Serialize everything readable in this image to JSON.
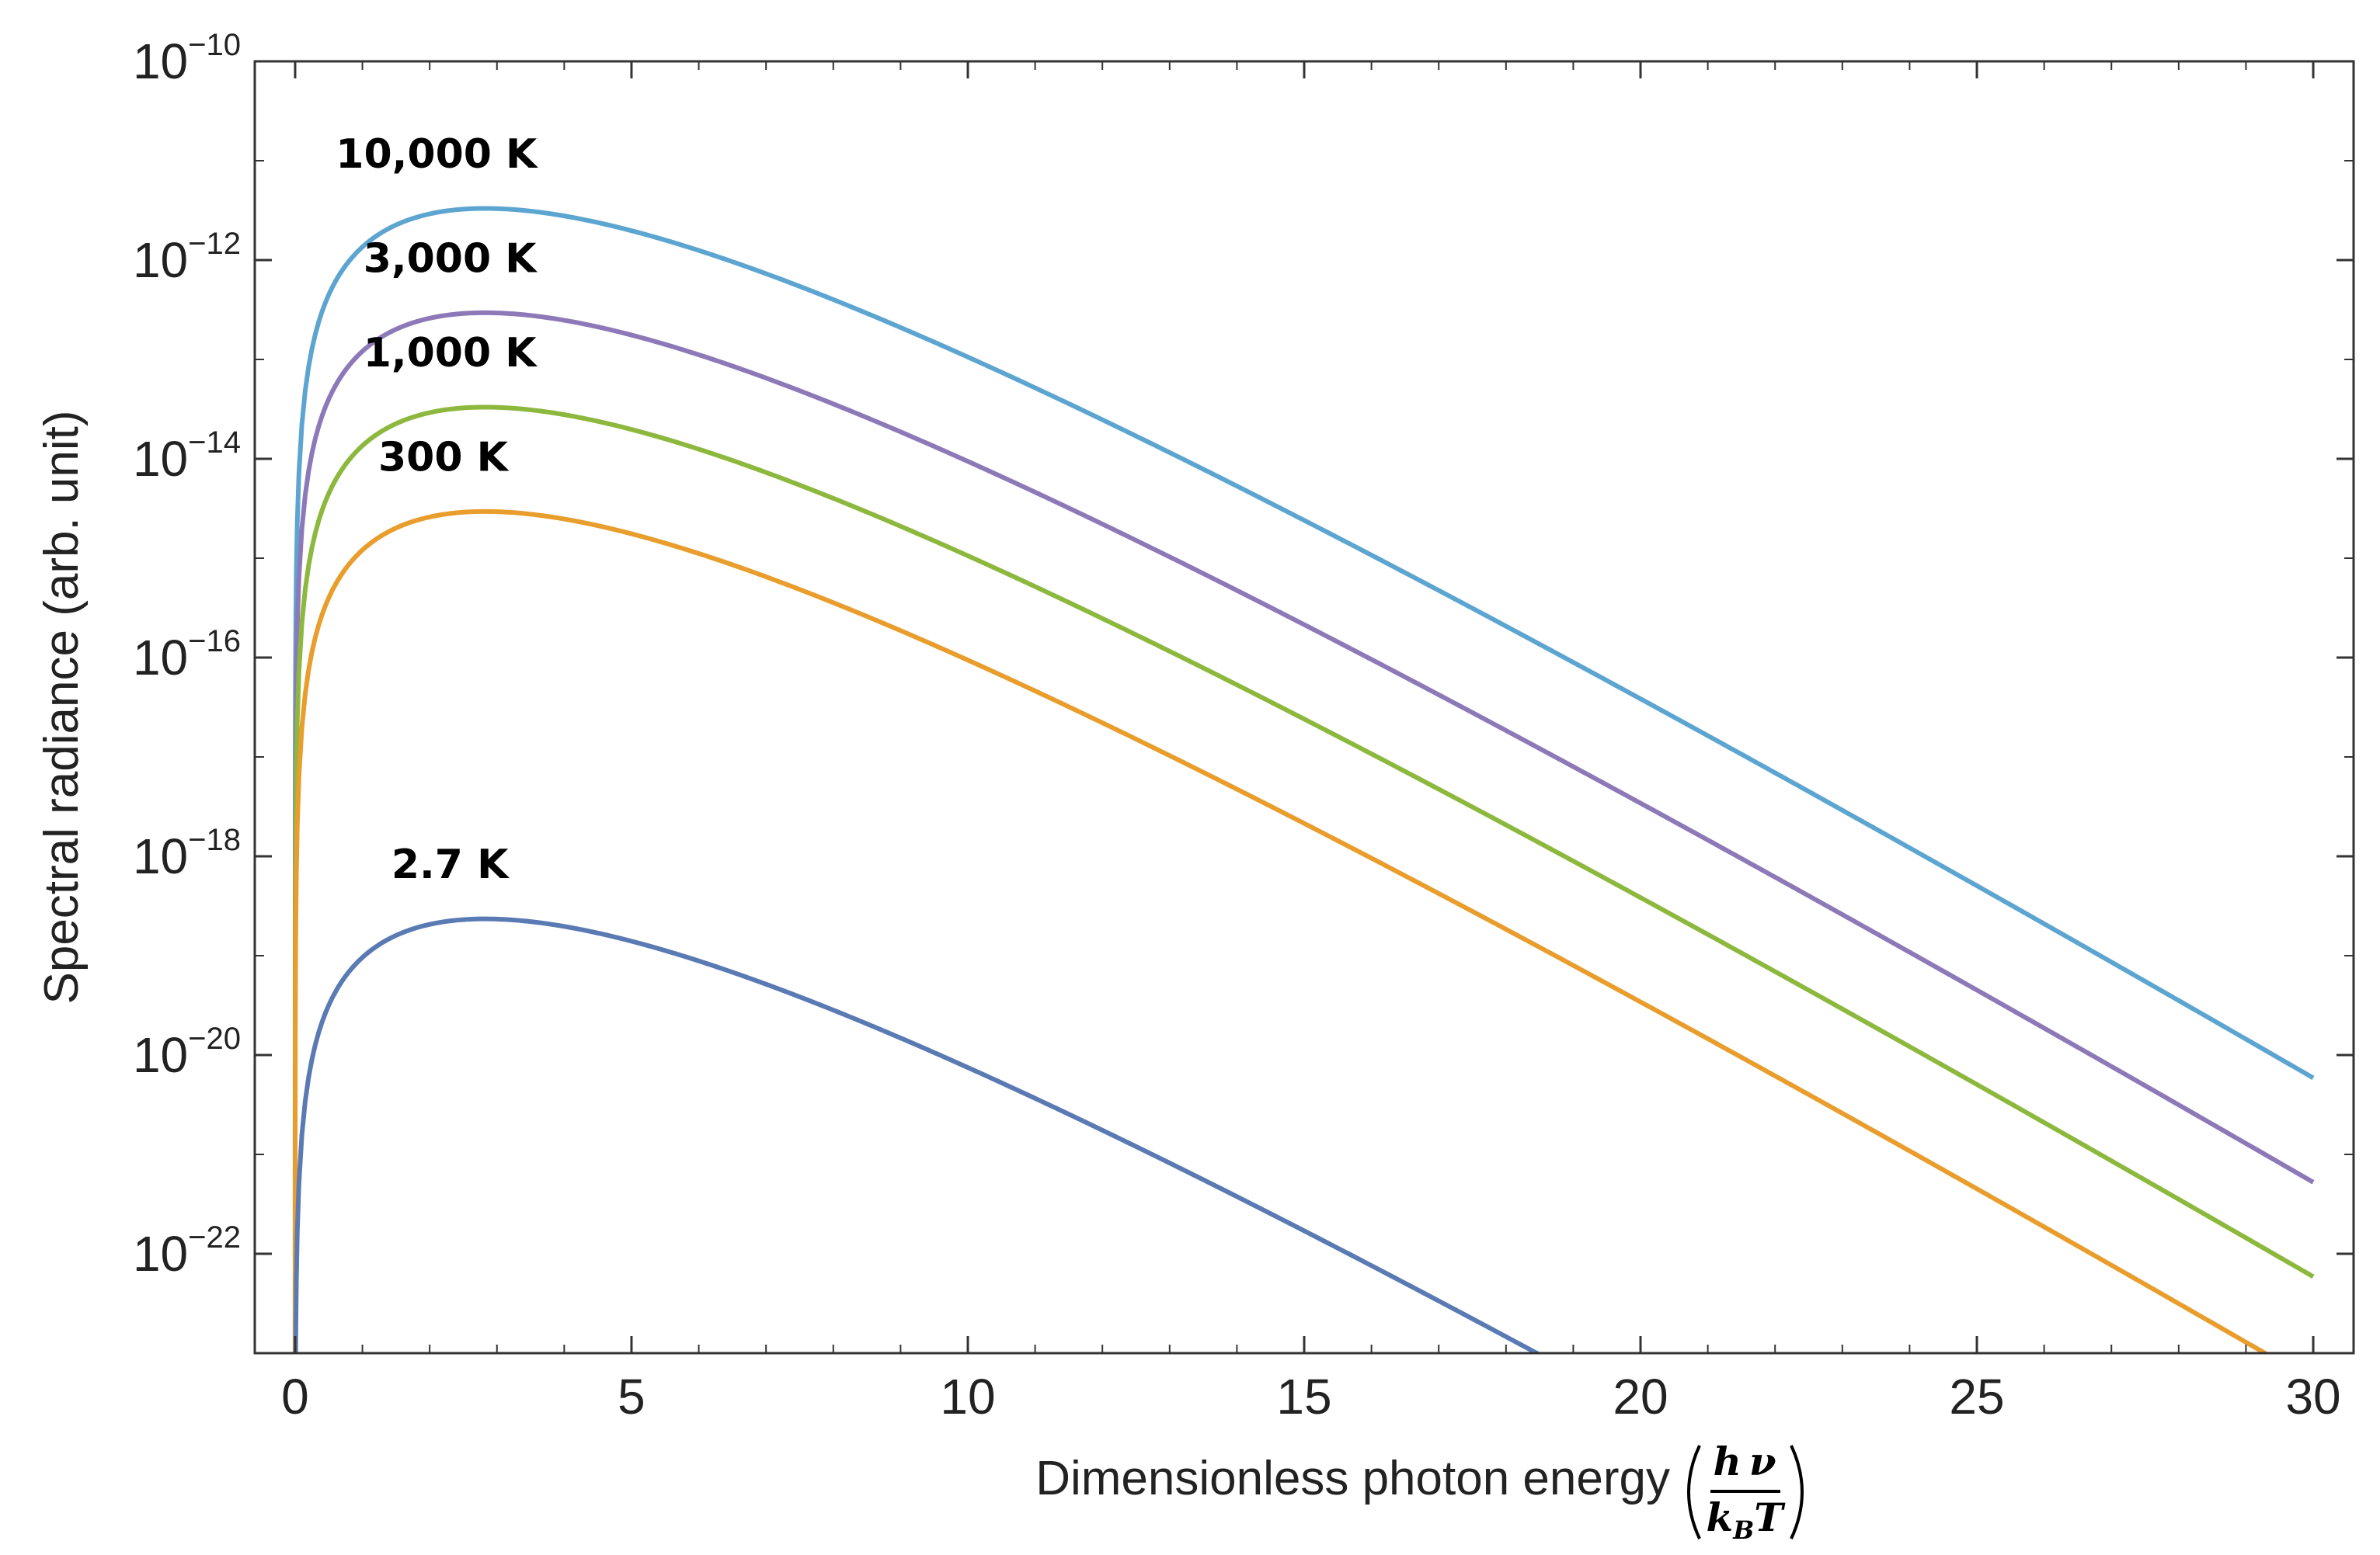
{
  "chart_data": {
    "type": "line",
    "title": "",
    "xlabel": "Dimensionless photon energy",
    "xlabel_fraction": {
      "numerator": "h ν",
      "denominator_main": "k",
      "denominator_sub": "B",
      "denominator_tail": "T"
    },
    "ylabel": "Spectral radiance (arb. unit)",
    "xlim": [
      -0.6,
      30.6
    ],
    "ylim_log10": [
      -23,
      -10
    ],
    "yscale": "log",
    "x_ticks": [
      "0",
      "5",
      "10",
      "15",
      "20",
      "25",
      "30"
    ],
    "x_tick_values": [
      0,
      5,
      10,
      15,
      20,
      25,
      30
    ],
    "y_ticks": [
      {
        "base": "10",
        "exp": "−10",
        "log": -10
      },
      {
        "base": "10",
        "exp": "−12",
        "log": -12
      },
      {
        "base": "10",
        "exp": "−14",
        "log": -14
      },
      {
        "base": "10",
        "exp": "−16",
        "log": -16
      },
      {
        "base": "10",
        "exp": "−18",
        "log": -18
      },
      {
        "base": "10",
        "exp": "−20",
        "log": -20
      },
      {
        "base": "10",
        "exp": "−22",
        "log": -22
      }
    ],
    "model": "y = A * x^3 / (e^x - 1)",
    "series": [
      {
        "name": "10,000 K",
        "color": "#5da5d1",
        "peak_log10": -11.48,
        "label_pos": {
          "x": 2.1,
          "log": -10.93
        }
      },
      {
        "name": "3,000 K",
        "color": "#8d79b8",
        "peak_log10": -12.53,
        "label_pos": {
          "x": 2.3,
          "log": -11.98
        }
      },
      {
        "name": "1,000 K",
        "color": "#8db83e",
        "peak_log10": -13.48,
        "label_pos": {
          "x": 2.3,
          "log": -12.93
        }
      },
      {
        "name": "300 K",
        "color": "#e89d2c",
        "peak_log10": -14.53,
        "label_pos": {
          "x": 2.2,
          "log": -13.98
        }
      },
      {
        "name": "2.7 K",
        "color": "#5a7ab4",
        "peak_log10": -18.63,
        "label_pos": {
          "x": 2.3,
          "log": -18.08
        }
      }
    ]
  }
}
